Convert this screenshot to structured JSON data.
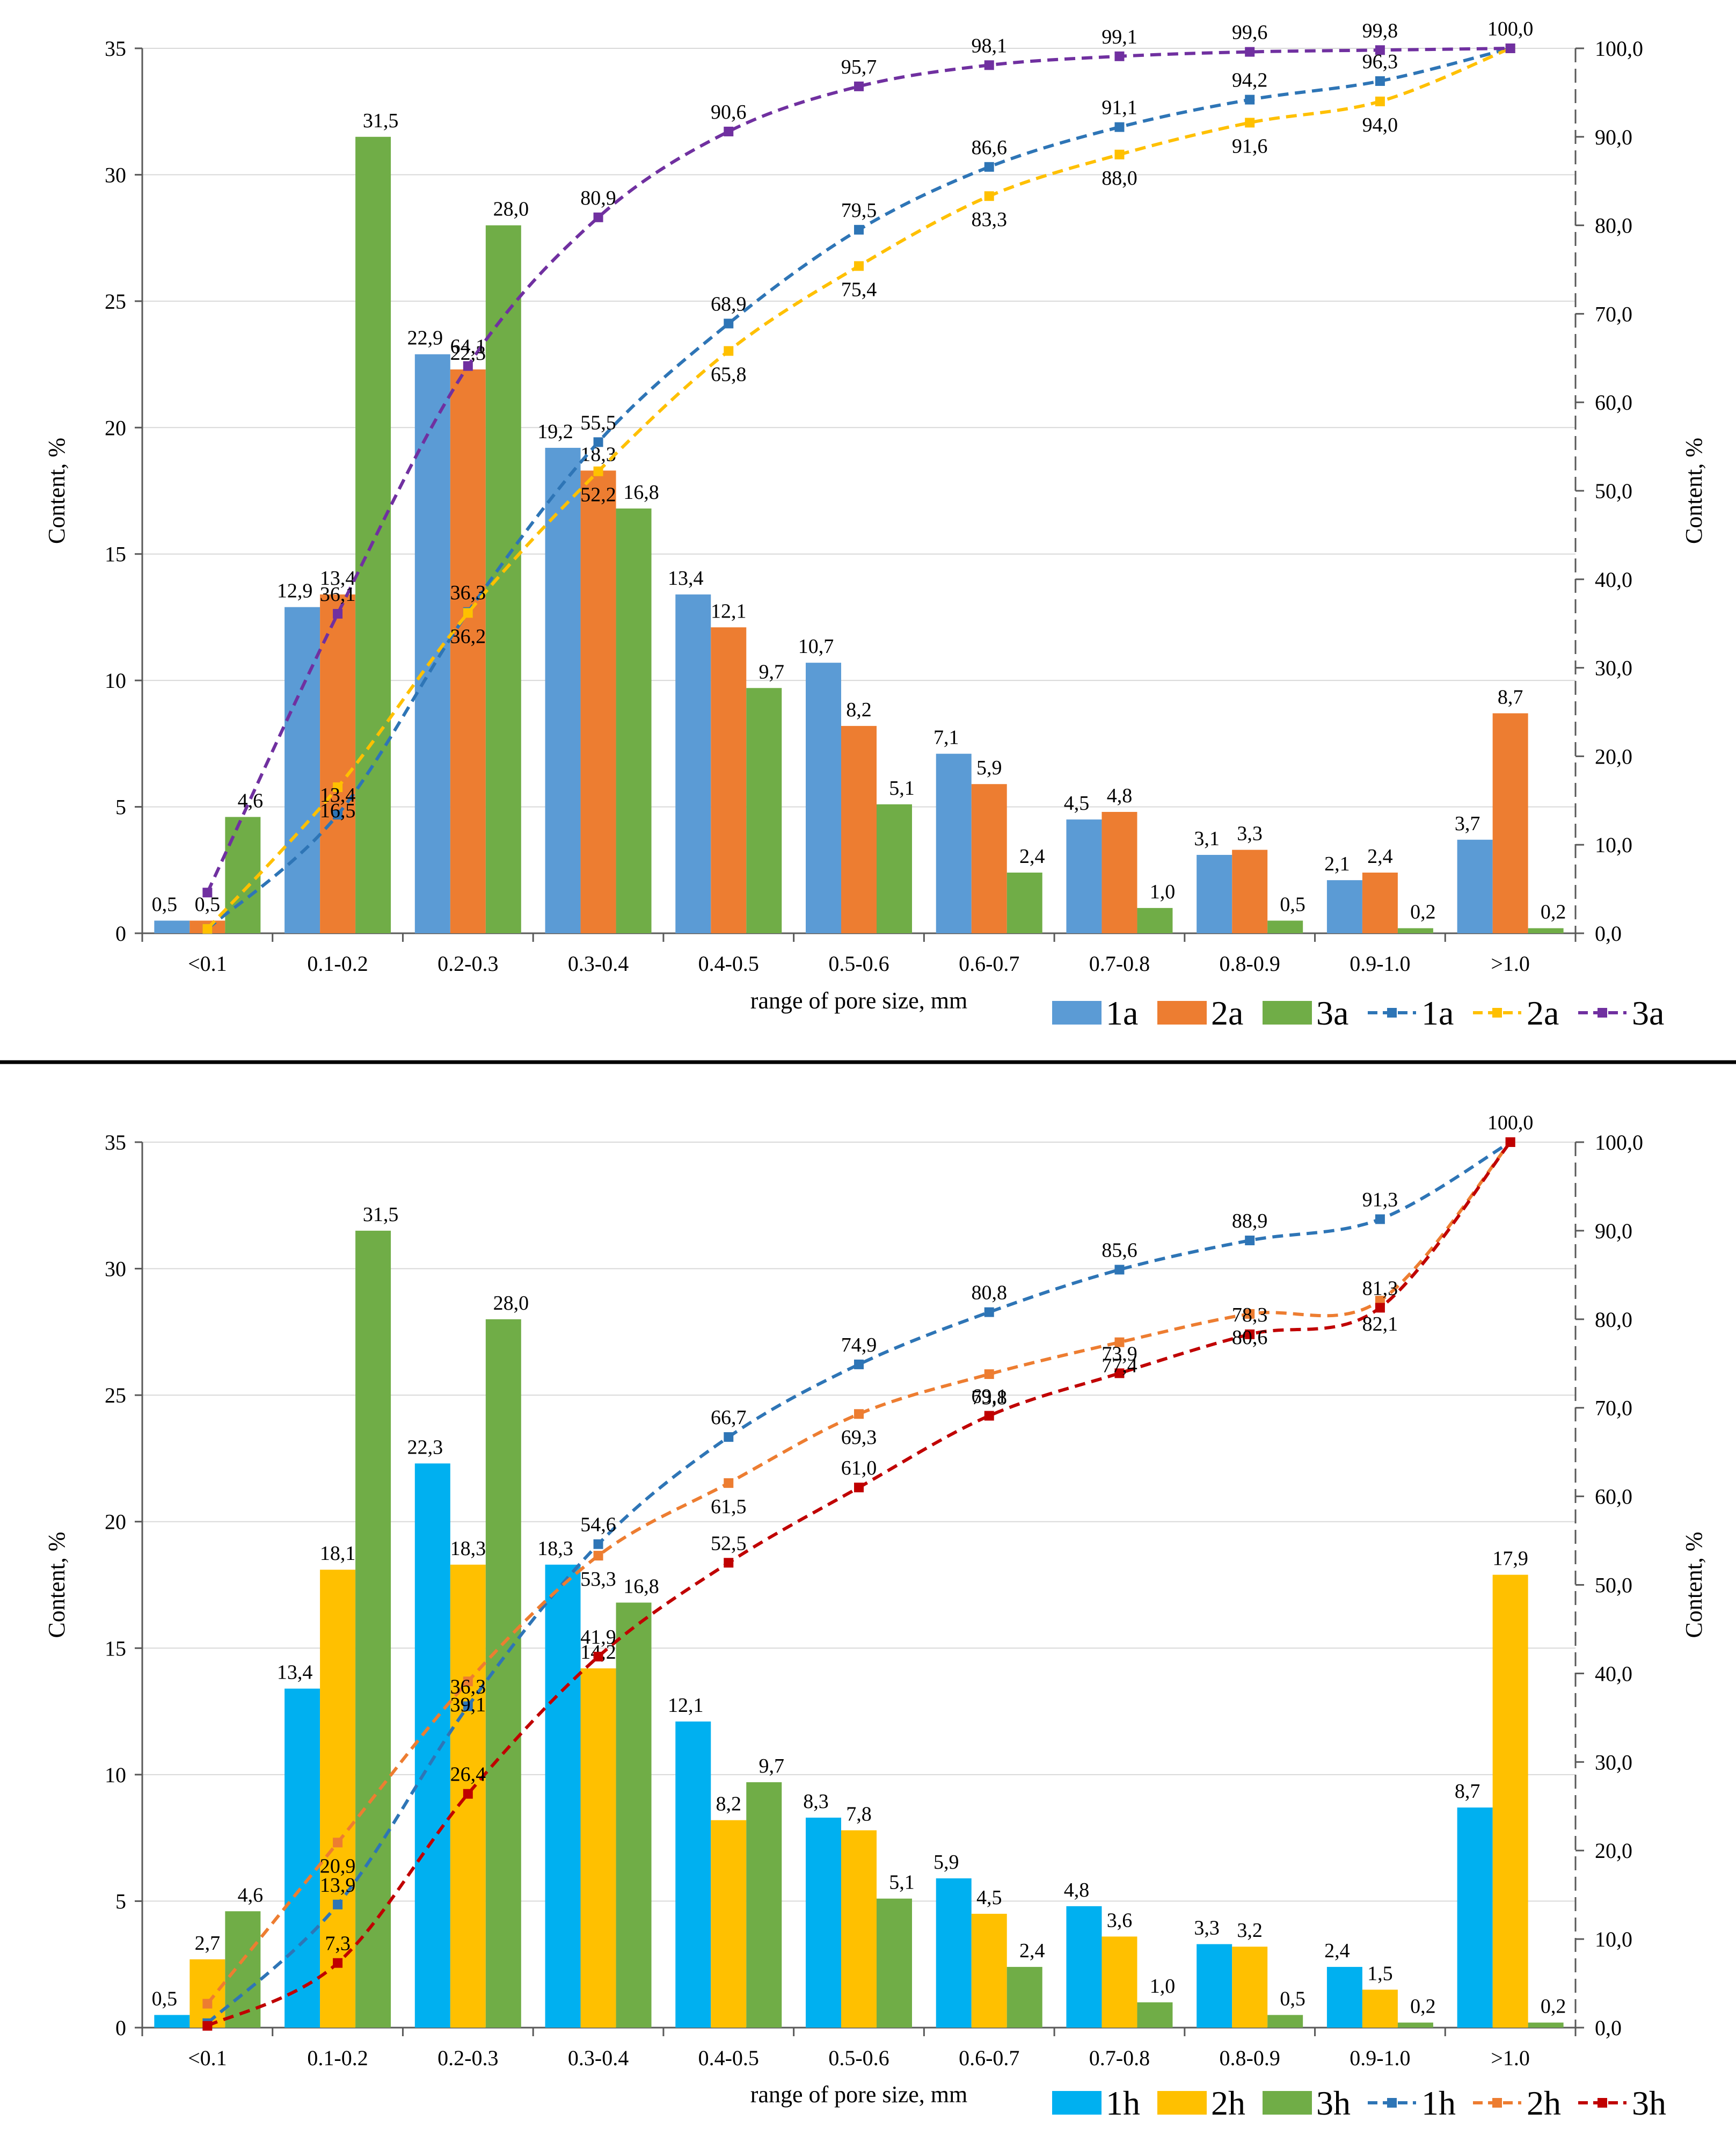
{
  "chart_data": [
    {
      "type": "bar+line",
      "panel": "top",
      "categories": [
        "<0.1",
        "0.1-0.2",
        "0.2-0.3",
        "0.3-0.4",
        "0.4-0.5",
        "0.5-0.6",
        "0.6-0.7",
        "0.7-0.8",
        "0.8-0.9",
        "0.9-1.0",
        ">1.0"
      ],
      "xlabel": "range of pore size, mm",
      "ylabel": "Content, %",
      "y2label": "Content, %",
      "ylim": [
        0,
        35
      ],
      "y2lim": [
        0,
        100
      ],
      "yticks": [
        "0",
        "5",
        "10",
        "15",
        "20",
        "25",
        "30",
        "35"
      ],
      "y2ticks": [
        "0,0",
        "10,0",
        "20,0",
        "30,0",
        "40,0",
        "50,0",
        "60,0",
        "70,0",
        "80,0",
        "90,0",
        "100,0"
      ],
      "bar_series": [
        {
          "name": "1a",
          "color": "#5B9BD5",
          "values": [
            0.5,
            12.9,
            22.9,
            19.2,
            13.4,
            10.7,
            7.1,
            4.5,
            3.1,
            2.1,
            3.7
          ],
          "labels": [
            "0,5",
            "12,9",
            "22,9",
            "19,2",
            "13,4",
            "10,7",
            "7,1",
            "4,5",
            "3,1",
            "2,1",
            "3,7"
          ]
        },
        {
          "name": "2a",
          "color": "#ED7D31",
          "values": [
            0.5,
            13.4,
            22.3,
            18.3,
            12.1,
            8.2,
            5.9,
            4.8,
            3.3,
            2.4,
            8.7
          ],
          "labels": [
            "0,5",
            "13,4",
            "22,3",
            "18,3",
            "12,1",
            "8,2",
            "5,9",
            "4,8",
            "3,3",
            "2,4",
            "8,7"
          ]
        },
        {
          "name": "3a",
          "color": "#70AD47",
          "values": [
            4.6,
            31.5,
            28.0,
            16.8,
            9.7,
            5.1,
            2.4,
            1.0,
            0.5,
            0.2,
            0.2
          ],
          "labels": [
            "4,6",
            "31,5",
            "28,0",
            "16,8",
            "9,7",
            "5,1",
            "2,4",
            "1,0",
            "0,5",
            "0,2",
            "0,2"
          ]
        }
      ],
      "line_series": [
        {
          "name": "1a",
          "color": "#2E75B6",
          "values": [
            0.5,
            13.4,
            36.3,
            55.5,
            68.9,
            79.5,
            86.6,
            91.1,
            94.2,
            96.3,
            100.0
          ],
          "labels": [
            "",
            "13,4",
            "36,3",
            "55,5",
            "68,9",
            "79,5",
            "86,6",
            "91,1",
            "94,2",
            "96,3",
            "100,0"
          ]
        },
        {
          "name": "2a",
          "color": "#FFC000",
          "values": [
            0.5,
            16.5,
            36.2,
            52.2,
            65.8,
            75.4,
            83.3,
            88.0,
            91.6,
            94.0,
            100.0
          ],
          "labels": [
            "",
            "16,5",
            "36,2",
            "52,2",
            "65,8",
            "75,4",
            "83,3",
            "88,0",
            "91,6",
            "94,0",
            ""
          ]
        },
        {
          "name": "3a",
          "color": "#7030A0",
          "values": [
            4.6,
            36.1,
            64.1,
            80.9,
            90.6,
            95.7,
            98.1,
            99.1,
            99.6,
            99.8,
            100.0
          ],
          "labels": [
            "",
            "36,1",
            "64,1",
            "80,9",
            "90,6",
            "95,7",
            "98,1",
            "99,1",
            "99,6",
            "99,8",
            ""
          ]
        }
      ],
      "legend": [
        "1a",
        "2a",
        "3a",
        "1a",
        "2a",
        "3a"
      ]
    },
    {
      "type": "bar+line",
      "panel": "bottom",
      "categories": [
        "<0.1",
        "0.1-0.2",
        "0.2-0.3",
        "0.3-0.4",
        "0.4-0.5",
        "0.5-0.6",
        "0.6-0.7",
        "0.7-0.8",
        "0.8-0.9",
        "0.9-1.0",
        ">1.0"
      ],
      "xlabel": "range of pore size, mm",
      "ylabel": "Content, %",
      "y2label": "Content, %",
      "ylim": [
        0,
        35
      ],
      "y2lim": [
        0,
        100
      ],
      "yticks": [
        "0",
        "5",
        "10",
        "15",
        "20",
        "25",
        "30",
        "35"
      ],
      "y2ticks": [
        "0,0",
        "10,0",
        "20,0",
        "30,0",
        "40,0",
        "50,0",
        "60,0",
        "70,0",
        "80,0",
        "90,0",
        "100,0"
      ],
      "bar_series": [
        {
          "name": "1h",
          "color": "#00B0F0",
          "values": [
            0.5,
            13.4,
            22.3,
            18.3,
            12.1,
            8.3,
            5.9,
            4.8,
            3.3,
            2.4,
            8.7
          ],
          "labels": [
            "0,5",
            "13,4",
            "22,3",
            "18,3",
            "12,1",
            "8,3",
            "5,9",
            "4,8",
            "3,3",
            "2,4",
            "8,7"
          ]
        },
        {
          "name": "2h",
          "color": "#FFC000",
          "values": [
            2.7,
            18.1,
            18.3,
            14.2,
            8.2,
            7.8,
            4.5,
            3.6,
            3.2,
            1.5,
            17.9
          ],
          "labels": [
            "2,7",
            "18,1",
            "18,3",
            "14,2",
            "8,2",
            "7,8",
            "4,5",
            "3,6",
            "3,2",
            "1,5",
            "17,9"
          ]
        },
        {
          "name": "3h",
          "color": "#70AD47",
          "values": [
            4.6,
            31.5,
            28.0,
            16.8,
            9.7,
            5.1,
            2.4,
            1.0,
            0.5,
            0.2,
            0.2
          ],
          "labels": [
            "4,6",
            "31,5",
            "28,0",
            "16,8",
            "9,7",
            "5,1",
            "2,4",
            "1,0",
            "0,5",
            "0,2",
            "0,2"
          ]
        }
      ],
      "line_series": [
        {
          "name": "1h",
          "color": "#2E75B6",
          "values": [
            0.5,
            13.9,
            36.3,
            54.6,
            66.7,
            74.9,
            80.8,
            85.6,
            88.9,
            91.3,
            100.0
          ],
          "labels": [
            "",
            "13,9",
            "36,3",
            "54,6",
            "66,7",
            "74,9",
            "80,8",
            "85,6",
            "88,9",
            "91,3",
            "100,0"
          ]
        },
        {
          "name": "2h",
          "color": "#ED7D31",
          "values": [
            2.7,
            20.9,
            39.1,
            53.3,
            61.5,
            69.3,
            73.8,
            77.4,
            80.6,
            82.1,
            100.0
          ],
          "labels": [
            "",
            "20,9",
            "39,1",
            "53,3",
            "61,5",
            "69,3",
            "73,8",
            "77,4",
            "80,6",
            "82,1",
            ""
          ]
        },
        {
          "name": "3h",
          "color": "#C00000",
          "values": [
            0.2,
            7.3,
            26.4,
            41.9,
            52.5,
            61.0,
            69.1,
            73.9,
            78.3,
            81.3,
            100.0
          ],
          "labels": [
            "",
            "7,3",
            "26,4",
            "41,9",
            "52,5",
            "61,0",
            "69,1",
            "73,9",
            "78,3",
            "81,3",
            ""
          ]
        }
      ],
      "legend": [
        "1h",
        "2h",
        "3h",
        "1h",
        "2h",
        "3h"
      ]
    }
  ]
}
